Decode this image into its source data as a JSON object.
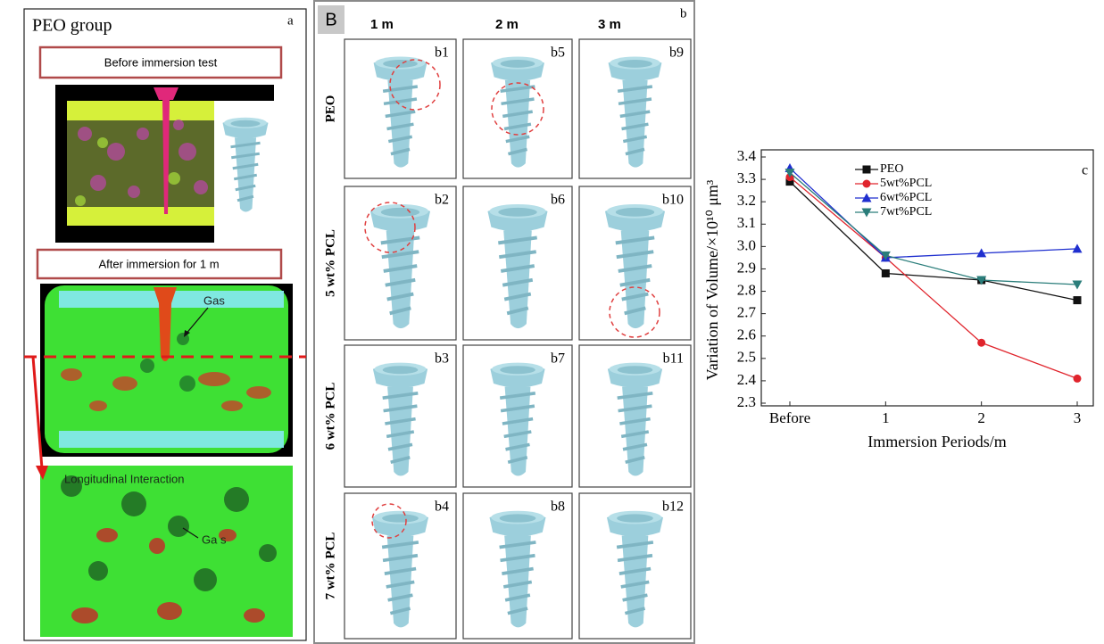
{
  "panel_a": {
    "title": "PEO group",
    "label": "a",
    "before_caption": "Before immersion test",
    "after_caption": "After immersion for 1 m",
    "gas_label_1": "Gas",
    "interaction_label": "Longitudinal Interaction",
    "gas_label_2": "Ga s"
  },
  "panel_b": {
    "label": "B",
    "corner_label": "b",
    "columns": [
      "1 m",
      "2 m",
      "3 m"
    ],
    "rows": [
      "PEO",
      "5 wt% PCL",
      "6 wt% PCL",
      "7 wt% PCL"
    ],
    "cells": [
      [
        "b1",
        "b5",
        "b9"
      ],
      [
        "b2",
        "b6",
        "b10"
      ],
      [
        "b3",
        "b7",
        "b11"
      ],
      [
        "b4",
        "b8",
        "b12"
      ]
    ]
  },
  "chart_data": {
    "type": "line",
    "label": "c",
    "xlabel": "Immersion Periods/m",
    "ylabel": "Variation of Volume/×10¹⁰ μm³",
    "categories": [
      "Before",
      "1",
      "2",
      "3"
    ],
    "series": [
      {
        "name": "PEO",
        "color": "#111111",
        "marker": "square",
        "values": [
          3.29,
          2.88,
          2.85,
          2.76
        ]
      },
      {
        "name": "5wt%PCL",
        "color": "#e0242c",
        "marker": "circle",
        "values": [
          3.31,
          2.95,
          2.57,
          2.41
        ]
      },
      {
        "name": "6wt%PCL",
        "color": "#1f2fcf",
        "marker": "triangle-up",
        "values": [
          3.35,
          2.95,
          2.97,
          2.99
        ]
      },
      {
        "name": "7wt%PCL",
        "color": "#2a7d7a",
        "marker": "triangle-down",
        "values": [
          3.33,
          2.96,
          2.85,
          2.83
        ]
      }
    ],
    "ylim": [
      2.3,
      3.4
    ],
    "yticks": [
      2.3,
      2.4,
      2.5,
      2.6,
      2.7,
      2.8,
      2.9,
      {
        "value": 3,
        "label": "3.0"
      },
      3.1,
      3.2,
      3.3,
      3.4
    ],
    "grid": false,
    "legend": "upper-left"
  }
}
